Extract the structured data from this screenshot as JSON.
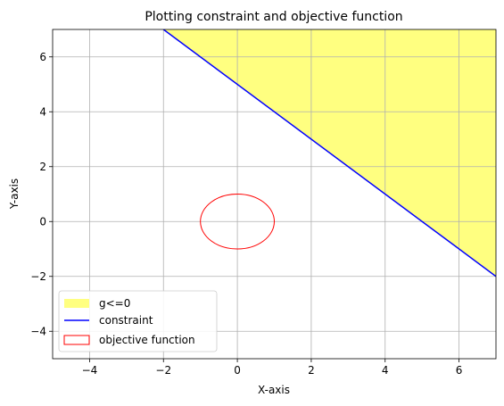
{
  "chart_data": {
    "type": "line",
    "title": "Plotting constraint and objective function",
    "xlabel": "X-axis",
    "ylabel": "Y-axis",
    "xlim": [
      -5,
      7
    ],
    "ylim": [
      -5,
      7
    ],
    "xticks": [
      -4,
      -2,
      0,
      2,
      4,
      6
    ],
    "yticks": [
      -4,
      -2,
      0,
      2,
      4,
      6
    ],
    "grid": true,
    "legend_position": "lower-left",
    "series": [
      {
        "name": "g<=0",
        "kind": "filled-region",
        "color": "#ffff80",
        "description_points": {
          "x": [
            -2,
            7,
            7
          ],
          "y": [
            7,
            7,
            -2
          ]
        }
      },
      {
        "name": "constraint",
        "kind": "line",
        "color": "#0000ff",
        "x": [
          -2,
          7
        ],
        "y": [
          7,
          -2
        ]
      },
      {
        "name": "objective function",
        "kind": "circle",
        "color": "#ff0000",
        "center": [
          0,
          0
        ],
        "radius": 1
      }
    ]
  }
}
